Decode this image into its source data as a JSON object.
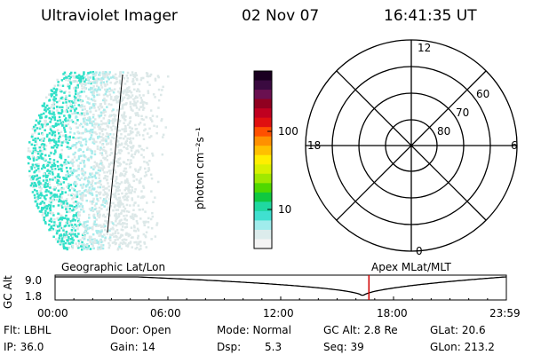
{
  "header": {
    "instrument": "Ultraviolet Imager",
    "date": "02 Nov 07",
    "time": "16:41:35 UT"
  },
  "colorbar": {
    "unit_label": "photon cm⁻²s⁻¹",
    "ticks": [
      "100",
      "10"
    ],
    "colors": [
      "#1a0020",
      "#3a0a40",
      "#6a1050",
      "#900020",
      "#c00020",
      "#e01010",
      "#ff5000",
      "#ff9000",
      "#ffc000",
      "#ffee00",
      "#d8f000",
      "#a0e800",
      "#50d800",
      "#10c840",
      "#20d8a0",
      "#40e0d0",
      "#a0ecec",
      "#dcecec",
      "#f4f4f4"
    ]
  },
  "polar": {
    "mlt_labels": [
      "12",
      "18",
      "6",
      "0"
    ],
    "lat_labels": [
      "60",
      "70",
      "80"
    ]
  },
  "timeline": {
    "ylabel": "GC Alt",
    "ymax": "9.0",
    "ymin": "1.8",
    "left_title": "Geographic Lat/Lon",
    "right_title": "Apex MLat/MLT",
    "ticks": [
      "00:00",
      "06:00",
      "12:00",
      "18:00",
      "23:59"
    ],
    "current_time_hours": 16.69
  },
  "info": {
    "flt": "Flt: LBHL",
    "ip": "IP: 36.0",
    "door": "Door: Open",
    "gain": "Gain: 14",
    "mode": "Mode: Normal",
    "dsp_label": "Dsp:",
    "dsp_value": "5.3",
    "gc_alt": "GC Alt: 2.8 Re",
    "seq": "Seq: 39",
    "glat": "GLat:  20.6",
    "glon": "GLon: 213.2"
  },
  "colors": {
    "cyan": "#30e0c8",
    "light_cyan": "#a8ecec",
    "pale": "#dce8e8",
    "marker": "#d00000"
  }
}
